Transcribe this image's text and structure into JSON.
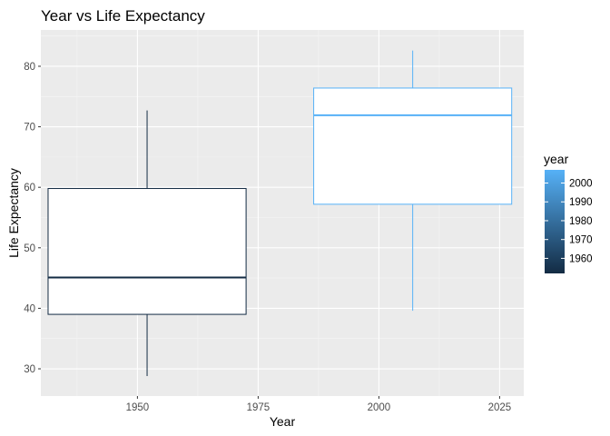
{
  "chart_data": {
    "type": "boxplot",
    "title": "Year vs Life Expectancy",
    "xlabel": "Year",
    "ylabel": "Life Expectancy",
    "xlim": [
      1930,
      2030
    ],
    "ylim": [
      25.5,
      86
    ],
    "x_ticks": [
      1950,
      1975,
      2000,
      2025
    ],
    "x_minor_ticks": [
      1937.5,
      1962.5,
      1987.5,
      2012.5
    ],
    "y_ticks": [
      30,
      40,
      50,
      60,
      70,
      80
    ],
    "y_minor_ticks": [
      35,
      45,
      55,
      65,
      75,
      85
    ],
    "grid": true,
    "boxes": [
      {
        "x": 1952,
        "x_min": 1931.5,
        "x_max": 1972.5,
        "whisker_low": 28.8,
        "q1": 39.0,
        "median": 45.1,
        "q3": 59.8,
        "whisker_high": 72.7,
        "color": "#132b43"
      },
      {
        "x": 2007,
        "x_min": 1986.5,
        "x_max": 2027.5,
        "whisker_low": 39.6,
        "q1": 57.2,
        "median": 71.9,
        "q3": 76.4,
        "whisker_high": 82.6,
        "color": "#56b1f7"
      }
    ],
    "legend": {
      "title": "year",
      "placement": "right",
      "range": [
        1952,
        2007
      ],
      "ticks": [
        1960,
        1970,
        1980,
        1990,
        2000
      ],
      "low_color": "#132b43",
      "high_color": "#56b1f7"
    }
  }
}
